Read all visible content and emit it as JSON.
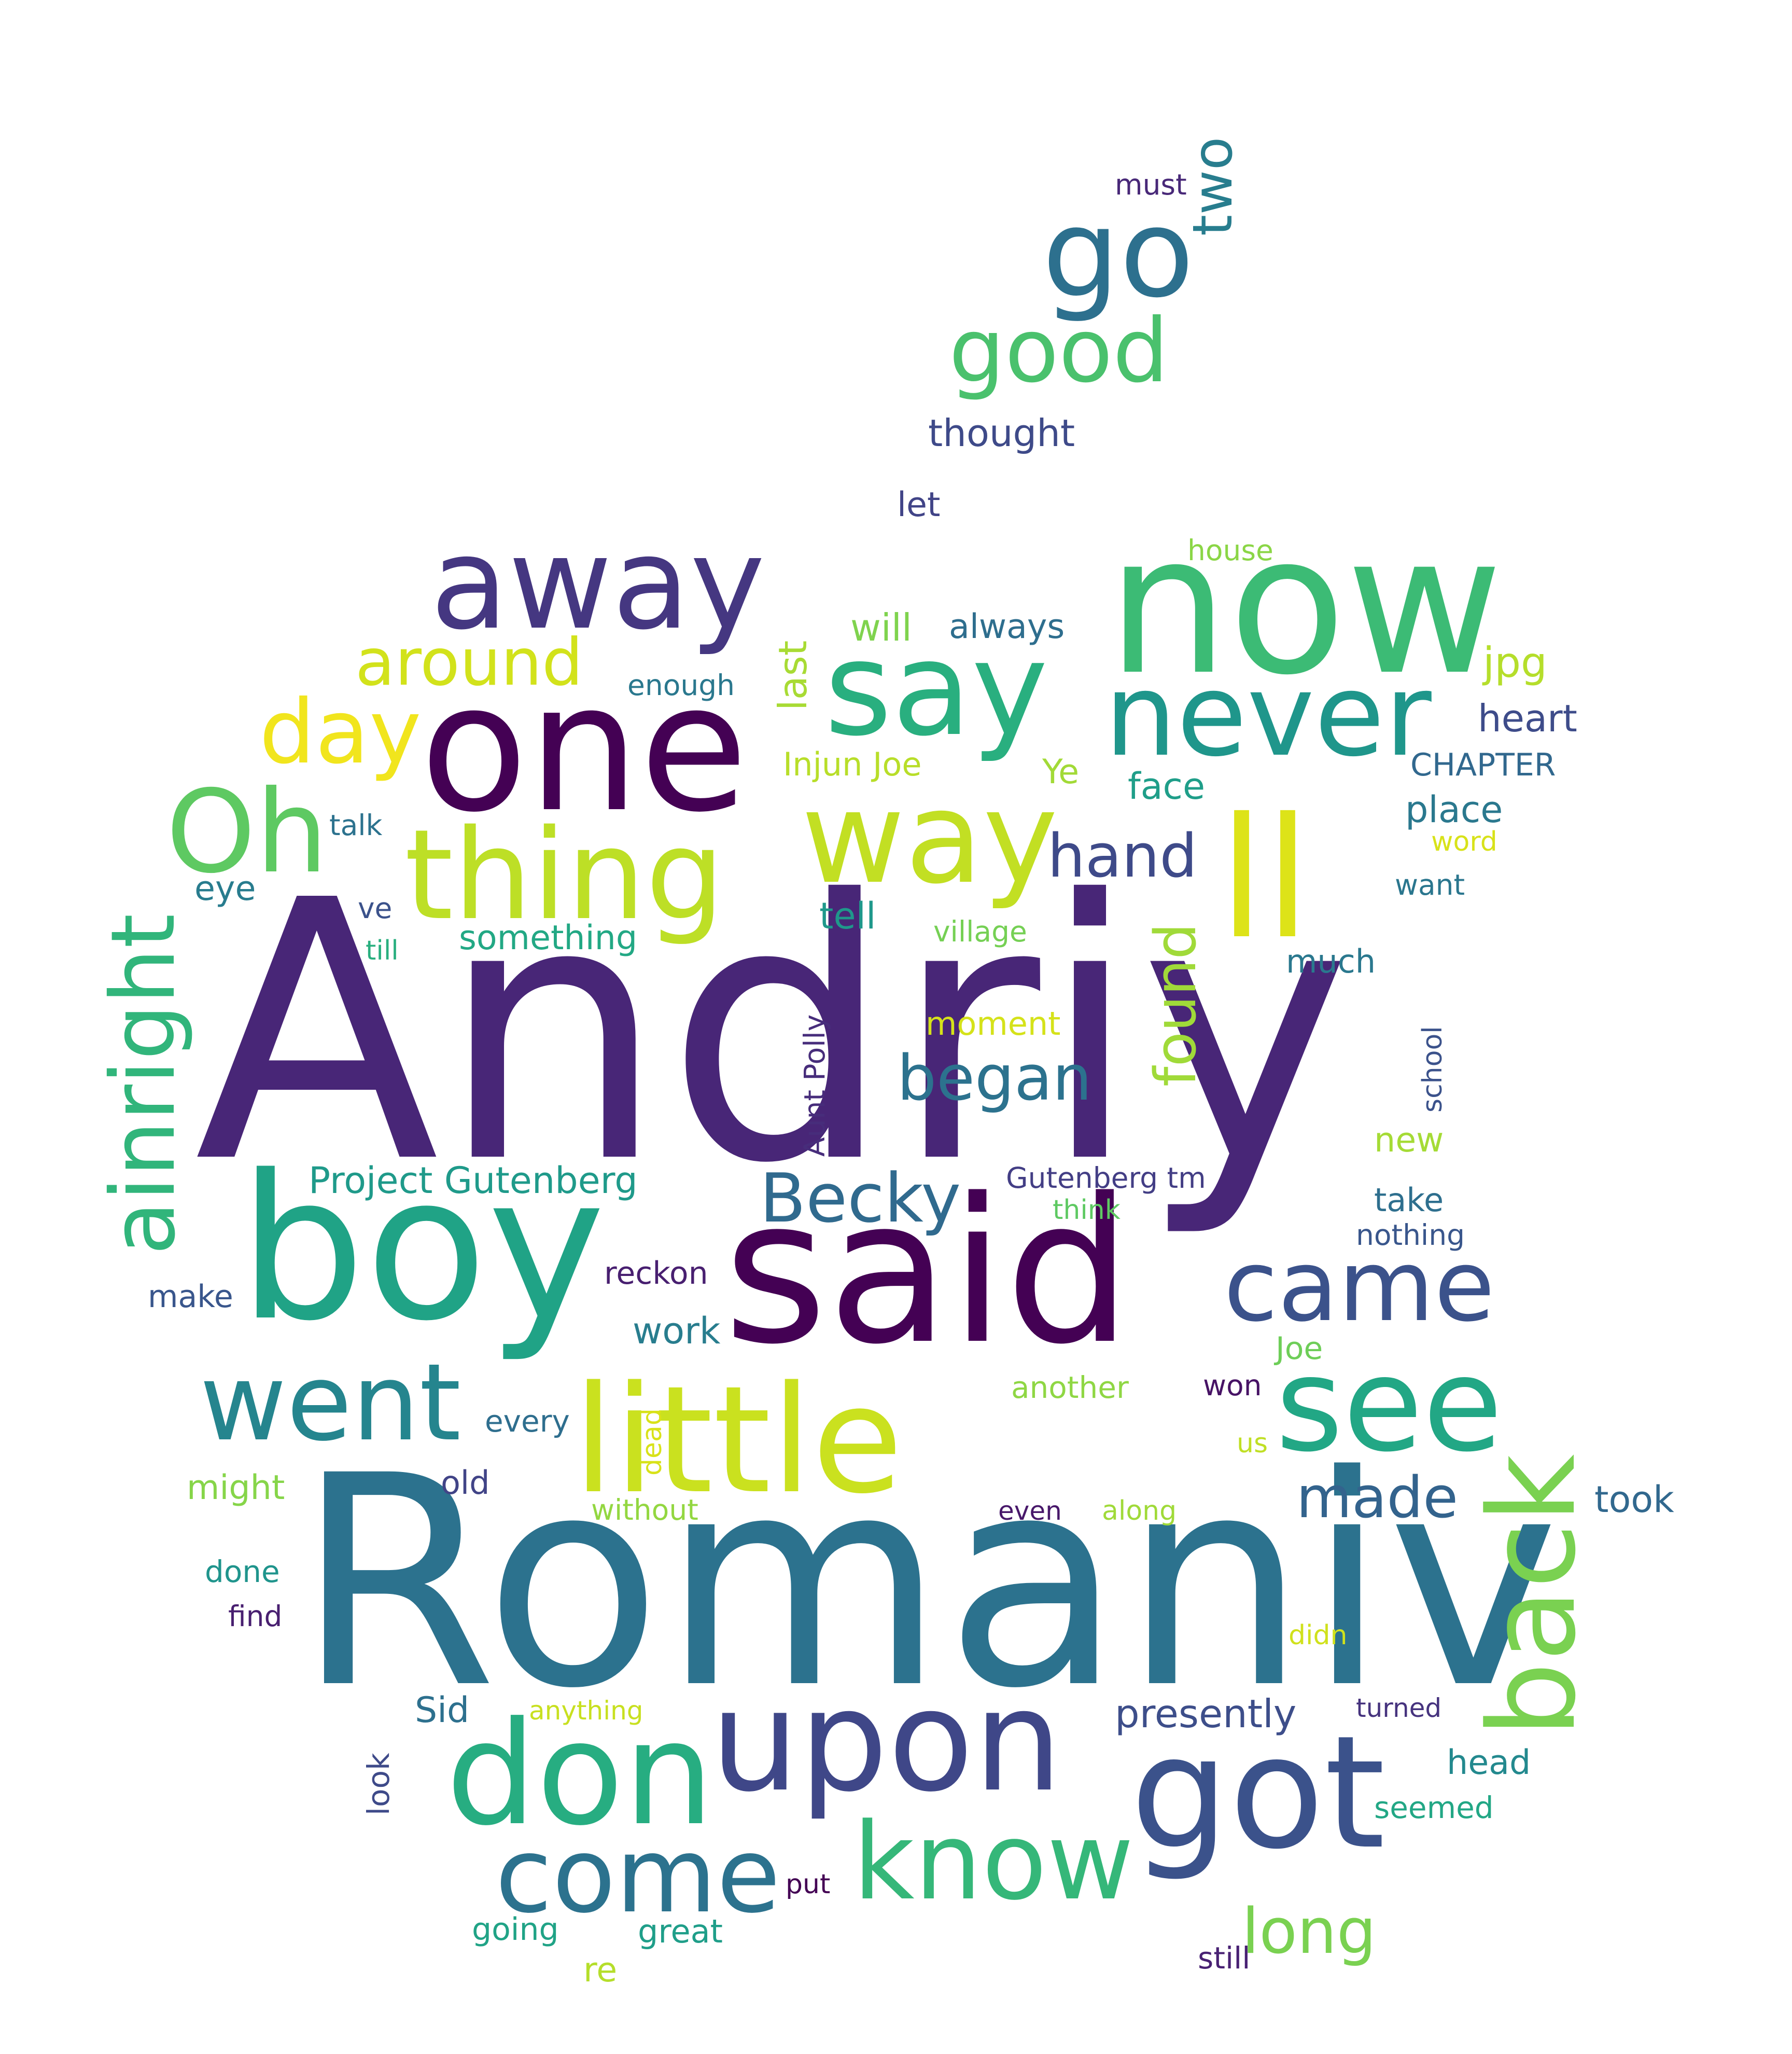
{
  "words": [
    {
      "text": "Andriy",
      "color": "#482677"
    },
    {
      "text": "Romaniv",
      "color": "#2c728e"
    },
    {
      "text": "said",
      "color": "#440154"
    },
    {
      "text": "boy",
      "color": "#20a386"
    },
    {
      "text": "now",
      "color": "#3cbb75"
    },
    {
      "text": "one",
      "color": "#440154"
    },
    {
      "text": "away",
      "color": "#453781"
    },
    {
      "text": "say",
      "color": "#29af7f"
    },
    {
      "text": "never",
      "color": "#1f968b"
    },
    {
      "text": "ll",
      "color": "#dde318"
    },
    {
      "text": "way",
      "color": "#c2df23"
    },
    {
      "text": "thing",
      "color": "#bddf26"
    },
    {
      "text": "Oh",
      "color": "#5ec962"
    },
    {
      "text": "day",
      "color": "#f1e51d"
    },
    {
      "text": "around",
      "color": "#d2e21b"
    },
    {
      "text": "little",
      "color": "#cae11f"
    },
    {
      "text": "see",
      "color": "#22a785"
    },
    {
      "text": "came",
      "color": "#3b528b"
    },
    {
      "text": "went",
      "color": "#25858e"
    },
    {
      "text": "upon",
      "color": "#3f4788"
    },
    {
      "text": "don",
      "color": "#27ad81"
    },
    {
      "text": "got",
      "color": "#3b528b"
    },
    {
      "text": "know",
      "color": "#35b779"
    },
    {
      "text": "come",
      "color": "#2c728e"
    },
    {
      "text": "back",
      "color": "#7ad151"
    },
    {
      "text": "go",
      "color": "#2d708e"
    },
    {
      "text": "good",
      "color": "#4ac16d"
    },
    {
      "text": "two",
      "color": "#287d8e"
    },
    {
      "text": "ainright",
      "color": "#31b57b"
    },
    {
      "text": "began",
      "color": "#2c728e"
    },
    {
      "text": "Becky",
      "color": "#306a8e"
    },
    {
      "text": "hand",
      "color": "#3e4a89"
    },
    {
      "text": "found",
      "color": "#a0da39"
    },
    {
      "text": "long",
      "color": "#7ad151"
    },
    {
      "text": "made",
      "color": "#33638d"
    },
    {
      "text": "must",
      "color": "#482878"
    },
    {
      "text": "thought",
      "color": "#3e4a89"
    },
    {
      "text": "let",
      "color": "#414487"
    },
    {
      "text": "house",
      "color": "#8bd646"
    },
    {
      "text": "will",
      "color": "#7fd34e"
    },
    {
      "text": "always",
      "color": "#2e6e8e"
    },
    {
      "text": "jpg",
      "color": "#b5de2b"
    },
    {
      "text": "last",
      "color": "#a8db34"
    },
    {
      "text": "enough",
      "color": "#2a788e"
    },
    {
      "text": "heart",
      "color": "#3e4c8a"
    },
    {
      "text": "CHAPTER",
      "color": "#31688e"
    },
    {
      "text": "Injun Joe",
      "color": "#b8de29"
    },
    {
      "text": "Ye",
      "color": "#a2da37"
    },
    {
      "text": "face",
      "color": "#1f9e89"
    },
    {
      "text": "place",
      "color": "#2a788e"
    },
    {
      "text": "word",
      "color": "#d8e219"
    },
    {
      "text": "talk",
      "color": "#2c728e"
    },
    {
      "text": "want",
      "color": "#2a768e"
    },
    {
      "text": "eye",
      "color": "#287c8e"
    },
    {
      "text": "ve",
      "color": "#3b528b"
    },
    {
      "text": "tell",
      "color": "#1f988b"
    },
    {
      "text": "village",
      "color": "#75d054"
    },
    {
      "text": "something",
      "color": "#22a884"
    },
    {
      "text": "till",
      "color": "#29af7f"
    },
    {
      "text": "much",
      "color": "#2a788e"
    },
    {
      "text": "moment",
      "color": "#d5e21a"
    },
    {
      "text": "Aunt Polly",
      "color": "#472d7b"
    },
    {
      "text": "school",
      "color": "#3b528b"
    },
    {
      "text": "new",
      "color": "#a5db36"
    },
    {
      "text": "Project Gutenberg",
      "color": "#1f9a8a"
    },
    {
      "text": "Gutenberg tm",
      "color": "#433e85"
    },
    {
      "text": "think",
      "color": "#5ec962"
    },
    {
      "text": "take",
      "color": "#2e6f8e"
    },
    {
      "text": "nothing",
      "color": "#39568c"
    },
    {
      "text": "make",
      "color": "#39568c"
    },
    {
      "text": "reckon",
      "color": "#481f70"
    },
    {
      "text": "work",
      "color": "#287d8e"
    },
    {
      "text": "Joe",
      "color": "#6ece58"
    },
    {
      "text": "another",
      "color": "#8fd744"
    },
    {
      "text": "won",
      "color": "#471365"
    },
    {
      "text": "every",
      "color": "#2e6e8e"
    },
    {
      "text": "dead",
      "color": "#d8e219"
    },
    {
      "text": "us",
      "color": "#c0df25"
    },
    {
      "text": "might",
      "color": "#86d549"
    },
    {
      "text": "old",
      "color": "#414487"
    },
    {
      "text": "without",
      "color": "#93d741"
    },
    {
      "text": "even",
      "color": "#48186a"
    },
    {
      "text": "along",
      "color": "#a0da39"
    },
    {
      "text": "took",
      "color": "#31688e"
    },
    {
      "text": "done",
      "color": "#1f948c"
    },
    {
      "text": "find",
      "color": "#481f70"
    },
    {
      "text": "didn",
      "color": "#d0e11c"
    },
    {
      "text": "Sid",
      "color": "#2d708e"
    },
    {
      "text": "anything",
      "color": "#c8e020"
    },
    {
      "text": "presently",
      "color": "#3d4e8a"
    },
    {
      "text": "turned",
      "color": "#46337e"
    },
    {
      "text": "look",
      "color": "#3e4a89"
    },
    {
      "text": "head",
      "color": "#23898e"
    },
    {
      "text": "seemed",
      "color": "#22a785"
    },
    {
      "text": "put",
      "color": "#440154"
    },
    {
      "text": "going",
      "color": "#20a386"
    },
    {
      "text": "great",
      "color": "#1f9e89"
    },
    {
      "text": "still",
      "color": "#482173"
    },
    {
      "text": "re",
      "color": "#b5de2b"
    }
  ]
}
